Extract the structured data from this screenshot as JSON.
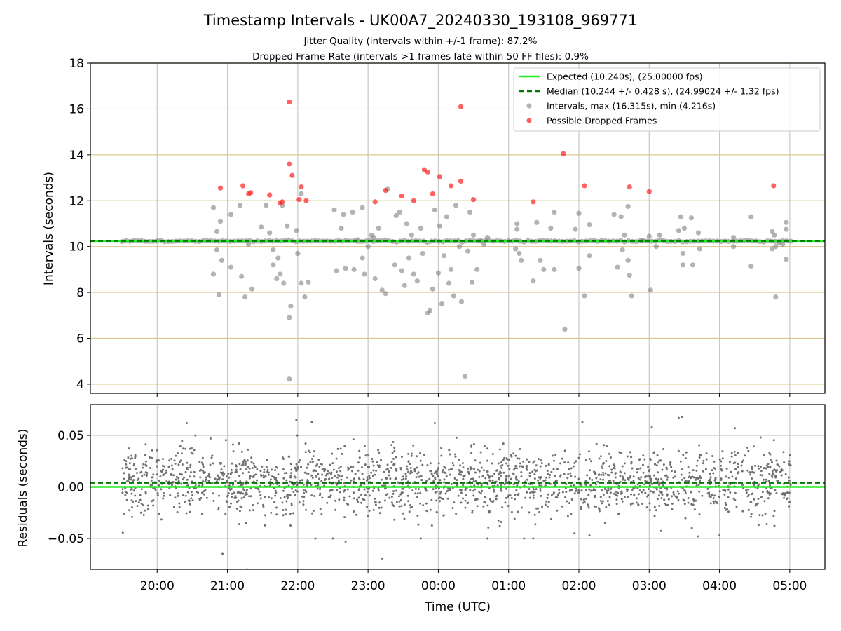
{
  "chart_data": {
    "type": "scatter",
    "title": "Timestamp Intervals - UK00A7_20240330_193108_969771",
    "subtitle_lines": [
      "Jitter Quality (intervals within +/-1 frame): 87.2%",
      "Dropped Frame Rate (intervals >1 frames late within 50 FF files): 0.9%"
    ],
    "xlabel": "Time (UTC)",
    "xticks": [
      "20:00",
      "21:00",
      "22:00",
      "23:00",
      "00:00",
      "01:00",
      "02:00",
      "03:00",
      "04:00",
      "05:00"
    ],
    "x_range_hours": [
      19.05,
      29.5
    ],
    "grid": true,
    "legend_position": "upper-right",
    "colors": {
      "expected": "#22ee22",
      "median": "#007700",
      "intervals": "#808080",
      "dropped": "#ff2020",
      "hgrid_top": "#d8c68a",
      "vgrid": "#c8c8c8",
      "residual_points": "#707070"
    },
    "top_panel": {
      "ylabel": "Intervals (seconds)",
      "ylim": [
        3.6,
        18
      ],
      "yticks": [
        "4",
        "6",
        "8",
        "10",
        "12",
        "14",
        "16",
        "18"
      ],
      "expected": 10.24,
      "median": 10.244,
      "legend": [
        "Expected (10.240s), (25.00000 fps)",
        "Median (10.244 +/- 0.428 s), (24.99024 +/- 1.32 fps)",
        "Intervals, max (16.315s), min (4.216s)",
        "Possible Dropped Frames"
      ],
      "intervals": [
        [
          20.8,
          11.7
        ],
        [
          20.85,
          9.85
        ],
        [
          20.92,
          9.4
        ],
        [
          20.8,
          8.8
        ],
        [
          20.88,
          7.9
        ],
        [
          20.9,
          11.1
        ],
        [
          20.85,
          10.65
        ],
        [
          21.05,
          11.4
        ],
        [
          21.05,
          9.1
        ],
        [
          21.18,
          11.8
        ],
        [
          21.2,
          8.7
        ],
        [
          21.25,
          7.8
        ],
        [
          21.3,
          10.1
        ],
        [
          21.35,
          8.15
        ],
        [
          21.48,
          10.85
        ],
        [
          21.55,
          11.8
        ],
        [
          21.6,
          10.6
        ],
        [
          21.65,
          9.85
        ],
        [
          21.65,
          9.2
        ],
        [
          21.7,
          8.6
        ],
        [
          21.72,
          9.5
        ],
        [
          21.78,
          11.8
        ],
        [
          21.75,
          8.8
        ],
        [
          21.8,
          8.4
        ],
        [
          21.85,
          10.9
        ],
        [
          21.9,
          7.4
        ],
        [
          21.88,
          6.9
        ],
        [
          21.88,
          4.22
        ],
        [
          21.98,
          10.7
        ],
        [
          22.05,
          12.3
        ],
        [
          22.05,
          8.4
        ],
        [
          22.1,
          7.8
        ],
        [
          22.15,
          8.45
        ],
        [
          22.0,
          9.7
        ],
        [
          22.52,
          11.6
        ],
        [
          22.55,
          8.95
        ],
        [
          22.62,
          10.8
        ],
        [
          22.65,
          11.4
        ],
        [
          22.68,
          9.05
        ],
        [
          22.78,
          11.5
        ],
        [
          22.8,
          9.0
        ],
        [
          22.85,
          10.3
        ],
        [
          22.92,
          11.7
        ],
        [
          22.92,
          9.5
        ],
        [
          22.95,
          8.8
        ],
        [
          23.0,
          10.0
        ],
        [
          23.05,
          10.5
        ],
        [
          23.08,
          10.4
        ],
        [
          23.1,
          8.6
        ],
        [
          23.15,
          10.8
        ],
        [
          23.2,
          8.1
        ],
        [
          23.25,
          7.95
        ],
        [
          23.28,
          12.5
        ],
        [
          23.38,
          9.2
        ],
        [
          23.4,
          11.35
        ],
        [
          23.45,
          11.5
        ],
        [
          23.48,
          8.95
        ],
        [
          23.52,
          8.3
        ],
        [
          23.55,
          11.0
        ],
        [
          23.58,
          9.5
        ],
        [
          23.62,
          10.5
        ],
        [
          23.65,
          8.8
        ],
        [
          23.7,
          8.5
        ],
        [
          23.75,
          10.8
        ],
        [
          23.78,
          9.7
        ],
        [
          23.85,
          7.1
        ],
        [
          23.88,
          7.2
        ],
        [
          23.92,
          8.15
        ],
        [
          23.95,
          11.6
        ],
        [
          24.0,
          8.85
        ],
        [
          24.02,
          10.9
        ],
        [
          24.05,
          7.5
        ],
        [
          24.08,
          9.6
        ],
        [
          24.12,
          11.3
        ],
        [
          24.15,
          8.4
        ],
        [
          24.18,
          9.0
        ],
        [
          24.22,
          7.85
        ],
        [
          24.25,
          11.8
        ],
        [
          24.3,
          10.0
        ],
        [
          24.33,
          7.6
        ],
        [
          24.38,
          4.35
        ],
        [
          24.42,
          9.8
        ],
        [
          24.45,
          11.5
        ],
        [
          24.48,
          8.45
        ],
        [
          24.5,
          10.5
        ],
        [
          24.55,
          9.0
        ],
        [
          24.6,
          10.25
        ],
        [
          24.65,
          10.1
        ],
        [
          24.7,
          10.4
        ],
        [
          25.12,
          10.75
        ],
        [
          25.15,
          9.7
        ],
        [
          25.18,
          9.4
        ],
        [
          25.12,
          11.0
        ],
        [
          25.1,
          9.9
        ],
        [
          25.35,
          8.5
        ],
        [
          25.4,
          11.05
        ],
        [
          25.45,
          9.4
        ],
        [
          25.5,
          9.0
        ],
        [
          25.6,
          10.8
        ],
        [
          25.65,
          11.5
        ],
        [
          25.65,
          9.0
        ],
        [
          25.8,
          6.4
        ],
        [
          25.95,
          10.75
        ],
        [
          26.0,
          11.45
        ],
        [
          26.0,
          9.05
        ],
        [
          26.08,
          7.85
        ],
        [
          26.15,
          10.95
        ],
        [
          26.15,
          9.6
        ],
        [
          26.5,
          11.4
        ],
        [
          26.55,
          9.1
        ],
        [
          26.6,
          11.3
        ],
        [
          26.62,
          9.85
        ],
        [
          26.65,
          10.5
        ],
        [
          26.7,
          11.75
        ],
        [
          26.7,
          9.4
        ],
        [
          26.72,
          8.75
        ],
        [
          26.75,
          7.85
        ],
        [
          26.9,
          10.25
        ],
        [
          27.0,
          10.45
        ],
        [
          27.02,
          8.1
        ],
        [
          27.1,
          10.0
        ],
        [
          27.15,
          10.5
        ],
        [
          27.42,
          10.7
        ],
        [
          27.45,
          11.3
        ],
        [
          27.48,
          9.2
        ],
        [
          27.5,
          10.8
        ],
        [
          27.48,
          9.7
        ],
        [
          27.6,
          11.25
        ],
        [
          27.62,
          9.2
        ],
        [
          27.7,
          10.6
        ],
        [
          27.72,
          9.9
        ],
        [
          28.2,
          10.0
        ],
        [
          28.2,
          10.4
        ],
        [
          28.45,
          11.3
        ],
        [
          28.45,
          9.15
        ],
        [
          28.75,
          10.65
        ],
        [
          28.78,
          10.5
        ],
        [
          28.8,
          10.0
        ],
        [
          28.8,
          7.8
        ],
        [
          28.9,
          10.1
        ],
        [
          28.95,
          10.75
        ],
        [
          28.95,
          11.05
        ],
        [
          28.95,
          9.45
        ],
        [
          28.85,
          10.15
        ],
        [
          28.75,
          9.9
        ]
      ],
      "dropped": [
        [
          20.9,
          12.55
        ],
        [
          21.22,
          12.65
        ],
        [
          21.3,
          12.3
        ],
        [
          21.33,
          12.35
        ],
        [
          21.6,
          12.25
        ],
        [
          21.75,
          11.9
        ],
        [
          21.78,
          11.95
        ],
        [
          21.88,
          16.3
        ],
        [
          21.88,
          13.6
        ],
        [
          21.92,
          13.1
        ],
        [
          22.02,
          12.05
        ],
        [
          22.05,
          12.6
        ],
        [
          22.12,
          12.0
        ],
        [
          23.1,
          11.95
        ],
        [
          23.25,
          12.45
        ],
        [
          23.48,
          12.2
        ],
        [
          23.65,
          12.0
        ],
        [
          23.8,
          13.35
        ],
        [
          23.85,
          13.25
        ],
        [
          23.92,
          12.3
        ],
        [
          24.02,
          13.05
        ],
        [
          24.18,
          12.65
        ],
        [
          24.32,
          12.85
        ],
        [
          24.32,
          16.1
        ],
        [
          24.5,
          12.05
        ],
        [
          25.35,
          11.95
        ],
        [
          25.78,
          14.05
        ],
        [
          26.08,
          12.65
        ],
        [
          26.72,
          12.6
        ],
        [
          27.0,
          12.4
        ],
        [
          28.77,
          12.65
        ]
      ],
      "baseline_span": [
        19.5,
        29.05
      ]
    },
    "bottom_panel": {
      "ylabel": "Residuals (seconds)",
      "ylim": [
        -0.08,
        0.08
      ],
      "yticks": [
        "0.05",
        "0.00",
        "−0.05"
      ],
      "expected": 0.0,
      "median": 0.004,
      "points_span_hours": [
        19.5,
        29.02
      ],
      "points_count": 2000,
      "outliers": [
        [
          20.93,
          -0.065
        ],
        [
          21.28,
          -0.08
        ],
        [
          22.25,
          -0.05
        ],
        [
          22.5,
          -0.05
        ],
        [
          22.68,
          -0.053
        ],
        [
          23.2,
          -0.07
        ],
        [
          23.75,
          -0.05
        ],
        [
          24.7,
          -0.05
        ],
        [
          25.22,
          -0.05
        ],
        [
          25.35,
          -0.05
        ],
        [
          26.15,
          -0.047
        ],
        [
          27.7,
          -0.048
        ],
        [
          28.0,
          -0.047
        ],
        [
          20.42,
          0.062
        ],
        [
          21.98,
          0.065
        ],
        [
          22.2,
          0.063
        ],
        [
          23.95,
          0.062
        ],
        [
          26.05,
          0.063
        ],
        [
          27.42,
          0.067
        ],
        [
          27.47,
          0.068
        ],
        [
          28.22,
          0.057
        ]
      ]
    }
  }
}
